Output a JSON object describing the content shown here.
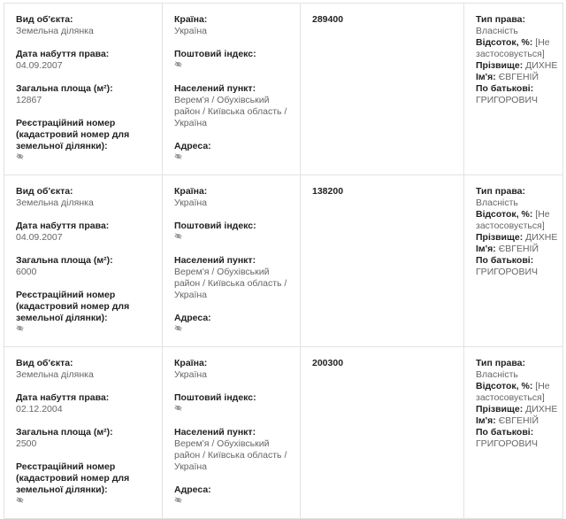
{
  "labels": {
    "object_type": "Вид об'єкта:",
    "acquired": "Дата набуття права:",
    "area": "Загальна площа (м²):",
    "reg_number": "Реєстраційний номер (кадастровий номер для земельної ділянки):",
    "country": "Країна:",
    "postal": "Поштовий індекс:",
    "locality": "Населений пункт:",
    "address": "Адреса:",
    "right_type": "Тип права:",
    "percent": "Відсоток, %:",
    "surname": "Прізвище:",
    "name": "Ім'я:",
    "patronymic": "По батькові:"
  },
  "hidden_icon": "eye-slash-icon",
  "rows": [
    {
      "object_type": "Земельна ділянка",
      "acquired": "04.09.2007",
      "area": "12867",
      "country": "Україна",
      "locality": "Верем'я / Обухівський район / Київська область / Україна",
      "value": "289400",
      "right_type": "Власність",
      "percent": "[Не застосовується]",
      "surname": "ДИХНЕ",
      "name": "ЄВГЕНІЙ",
      "patronymic": "ГРИГОРОВИЧ"
    },
    {
      "object_type": "Земельна ділянка",
      "acquired": "04.09.2007",
      "area": "6000",
      "country": "Україна",
      "locality": "Верем'я / Обухівський район / Київська область / Україна",
      "value": "138200",
      "right_type": "Власність",
      "percent": "[Не застосовується]",
      "surname": "ДИХНЕ",
      "name": "ЄВГЕНІЙ",
      "patronymic": "ГРИГОРОВИЧ"
    },
    {
      "object_type": "Земельна ділянка",
      "acquired": "02.12.2004",
      "area": "2500",
      "country": "Україна",
      "locality": "Верем'я / Обухівський район / Київська область / Україна",
      "value": "200300",
      "right_type": "Власність",
      "percent": "[Не застосовується]",
      "surname": "ДИХНЕ",
      "name": "ЄВГЕНІЙ",
      "patronymic": "ГРИГОРОВИЧ"
    }
  ]
}
